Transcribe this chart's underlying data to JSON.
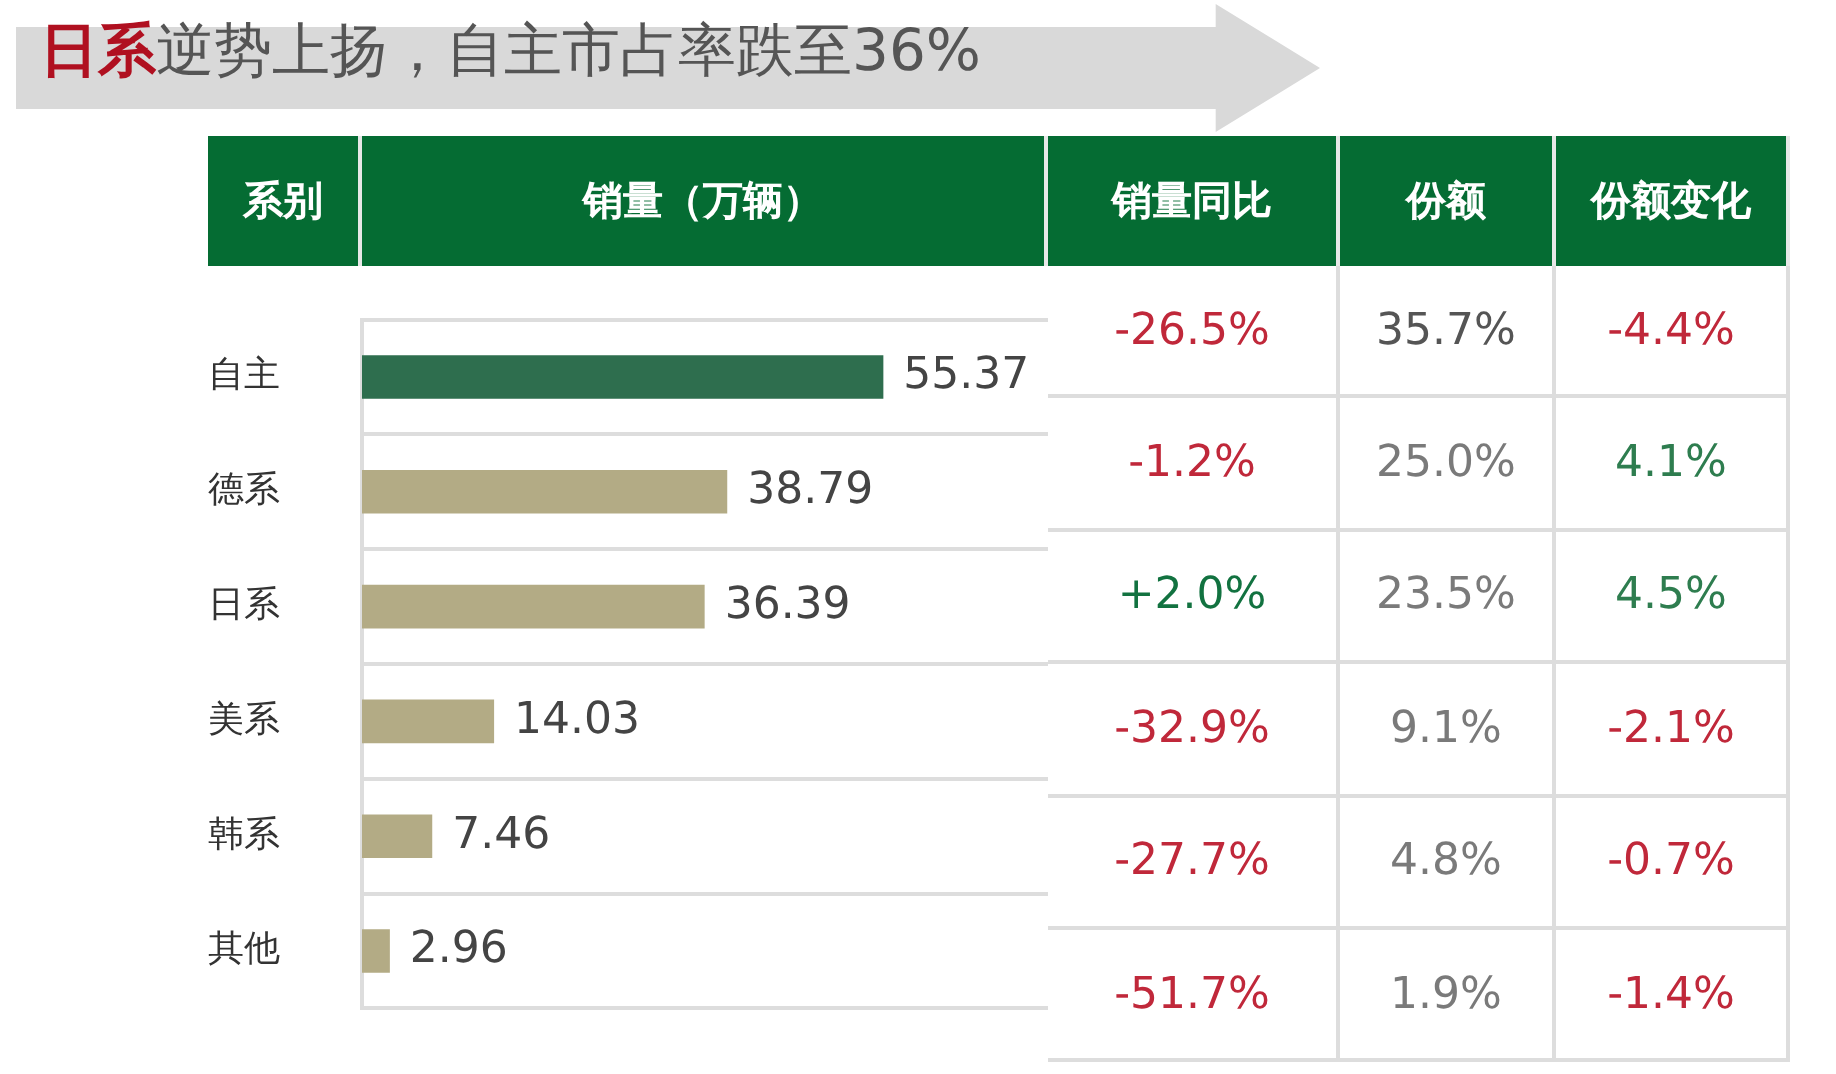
{
  "chart_data": [
    {
      "type": "bar",
      "orientation": "horizontal",
      "title": "日系逆势上扬，自主市占率跌至36%",
      "ylabel": "系别",
      "xlabel": "销量（万辆）",
      "categories": [
        "自主",
        "德系",
        "日系",
        "美系",
        "韩系",
        "其他"
      ],
      "values": [
        55.37,
        38.79,
        36.39,
        14.03,
        7.46,
        2.96
      ],
      "colors": [
        "#2e6e4e",
        "#b3ab85",
        "#b3ab85",
        "#b3ab85",
        "#b3ab85",
        "#b3ab85"
      ],
      "data_labels": true,
      "grid": "y",
      "tick_labels": "y"
    },
    {
      "type": "other",
      "title": "销量同比",
      "values": [
        -26.5,
        -1.2,
        2.0,
        -32.9,
        -27.7,
        -51.7
      ],
      "value_labels": [
        "-26.5%",
        "-1.2%",
        "+2.0%",
        "-32.9%",
        "-27.7%",
        "-51.7%"
      ],
      "colors": [
        "#c0283a",
        "#c0283a",
        "#127240",
        "#c0283a",
        "#c0283a",
        "#c0283a"
      ]
    },
    {
      "type": "other",
      "title": "份额",
      "values": [
        35.7,
        25.0,
        23.5,
        9.1,
        4.8,
        1.9
      ],
      "value_labels": [
        "35.7%",
        "25.0%",
        "23.5%",
        "9.1%",
        "4.8%",
        "1.9%"
      ],
      "colors": [
        "#555555",
        "#7a7a7a",
        "#7a7a7a",
        "#7a7a7a",
        "#7a7a7a",
        "#7a7a7a"
      ]
    },
    {
      "type": "other",
      "title": "份额变化",
      "values": [
        -4.4,
        4.1,
        4.5,
        -2.1,
        -0.7,
        -1.4
      ],
      "value_labels": [
        "-4.4%",
        "4.1%",
        "4.5%",
        "-2.1%",
        "-0.7%",
        "-1.4%"
      ],
      "colors": [
        "#c0283a",
        "#2e7d4f",
        "#2e7d4f",
        "#c0283a",
        "#c0283a",
        "#c0283a"
      ]
    }
  ]
}
